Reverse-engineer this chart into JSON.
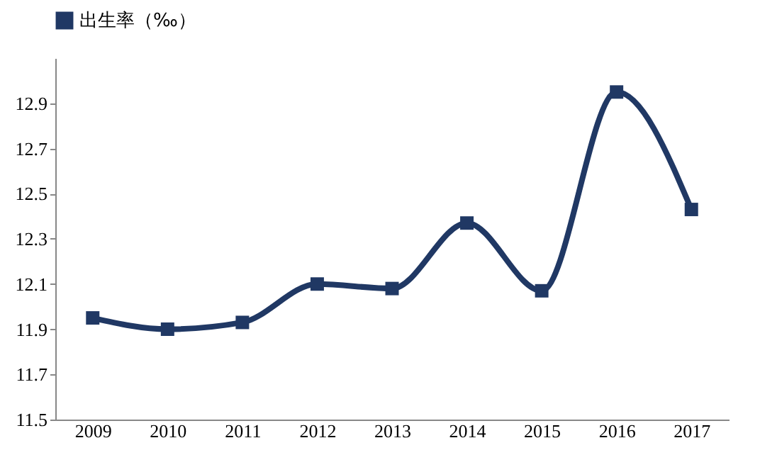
{
  "chart_data": {
    "type": "line",
    "categories": [
      "2009",
      "2010",
      "2011",
      "2012",
      "2013",
      "2014",
      "2015",
      "2016",
      "2017"
    ],
    "series": [
      {
        "name": "出生率（‰）",
        "color": "#203864",
        "values": [
          11.95,
          11.9,
          11.93,
          12.1,
          12.08,
          12.37,
          12.07,
          12.95,
          12.43
        ]
      }
    ],
    "ylim": [
      11.5,
      13.1
    ],
    "yticks": [
      11.5,
      11.7,
      11.9,
      12.1,
      12.3,
      12.5,
      12.7,
      12.9
    ],
    "grid": false,
    "legend": "top",
    "marker": "square",
    "line_style": "solid"
  }
}
